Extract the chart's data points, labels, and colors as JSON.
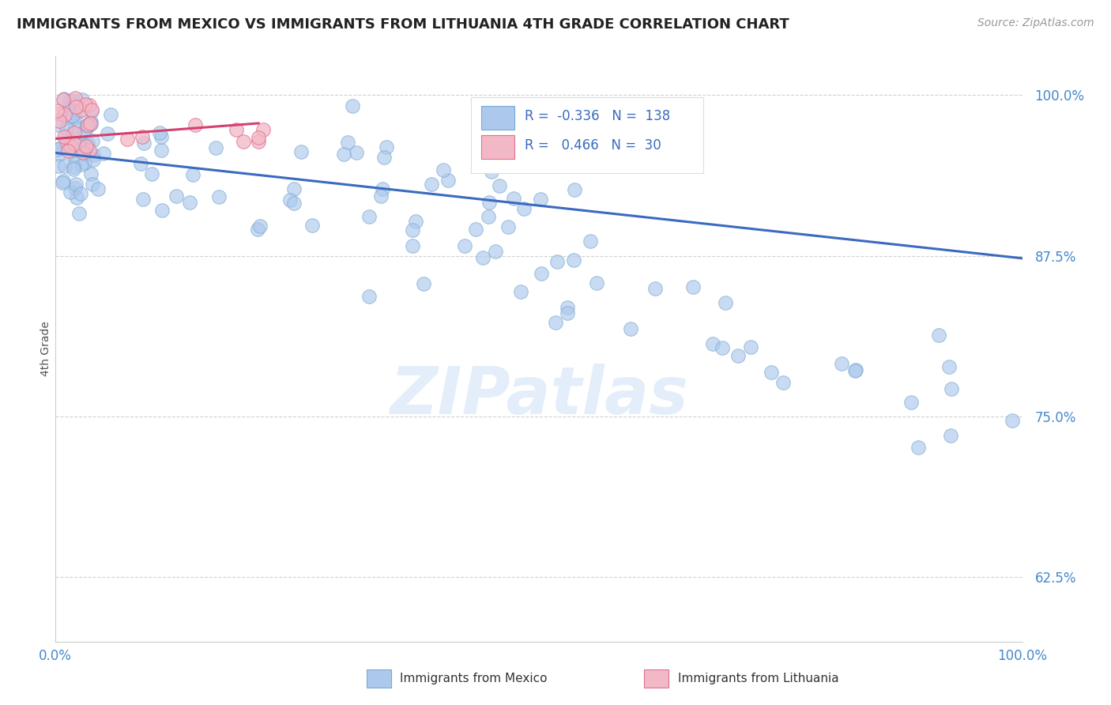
{
  "title": "IMMIGRANTS FROM MEXICO VS IMMIGRANTS FROM LITHUANIA 4TH GRADE CORRELATION CHART",
  "source": "Source: ZipAtlas.com",
  "ylabel": "4th Grade",
  "xlim": [
    0.0,
    1.0
  ],
  "ylim": [
    0.575,
    1.03
  ],
  "yticks": [
    0.625,
    0.75,
    0.875,
    1.0
  ],
  "ytick_labels": [
    "62.5%",
    "75.0%",
    "87.5%",
    "100.0%"
  ],
  "mexico_color": "#adc8ed",
  "mexico_edge_color": "#7aaad0",
  "lithuania_color": "#f2b8c6",
  "lithuania_edge_color": "#e07090",
  "trend_mexico_color": "#3a6bbf",
  "trend_lithuania_color": "#d44070",
  "legend_r_mexico": "-0.336",
  "legend_n_mexico": "138",
  "legend_r_lithuania": "0.466",
  "legend_n_lithuania": "30",
  "watermark": "ZIPatlas",
  "trend_mex_x0": 0.0,
  "trend_mex_x1": 1.0,
  "trend_mex_y0": 0.955,
  "trend_mex_y1": 0.873,
  "trend_lith_x0": 0.0,
  "trend_lith_x1": 0.21,
  "trend_lith_y0": 0.966,
  "trend_lith_y1": 0.978
}
